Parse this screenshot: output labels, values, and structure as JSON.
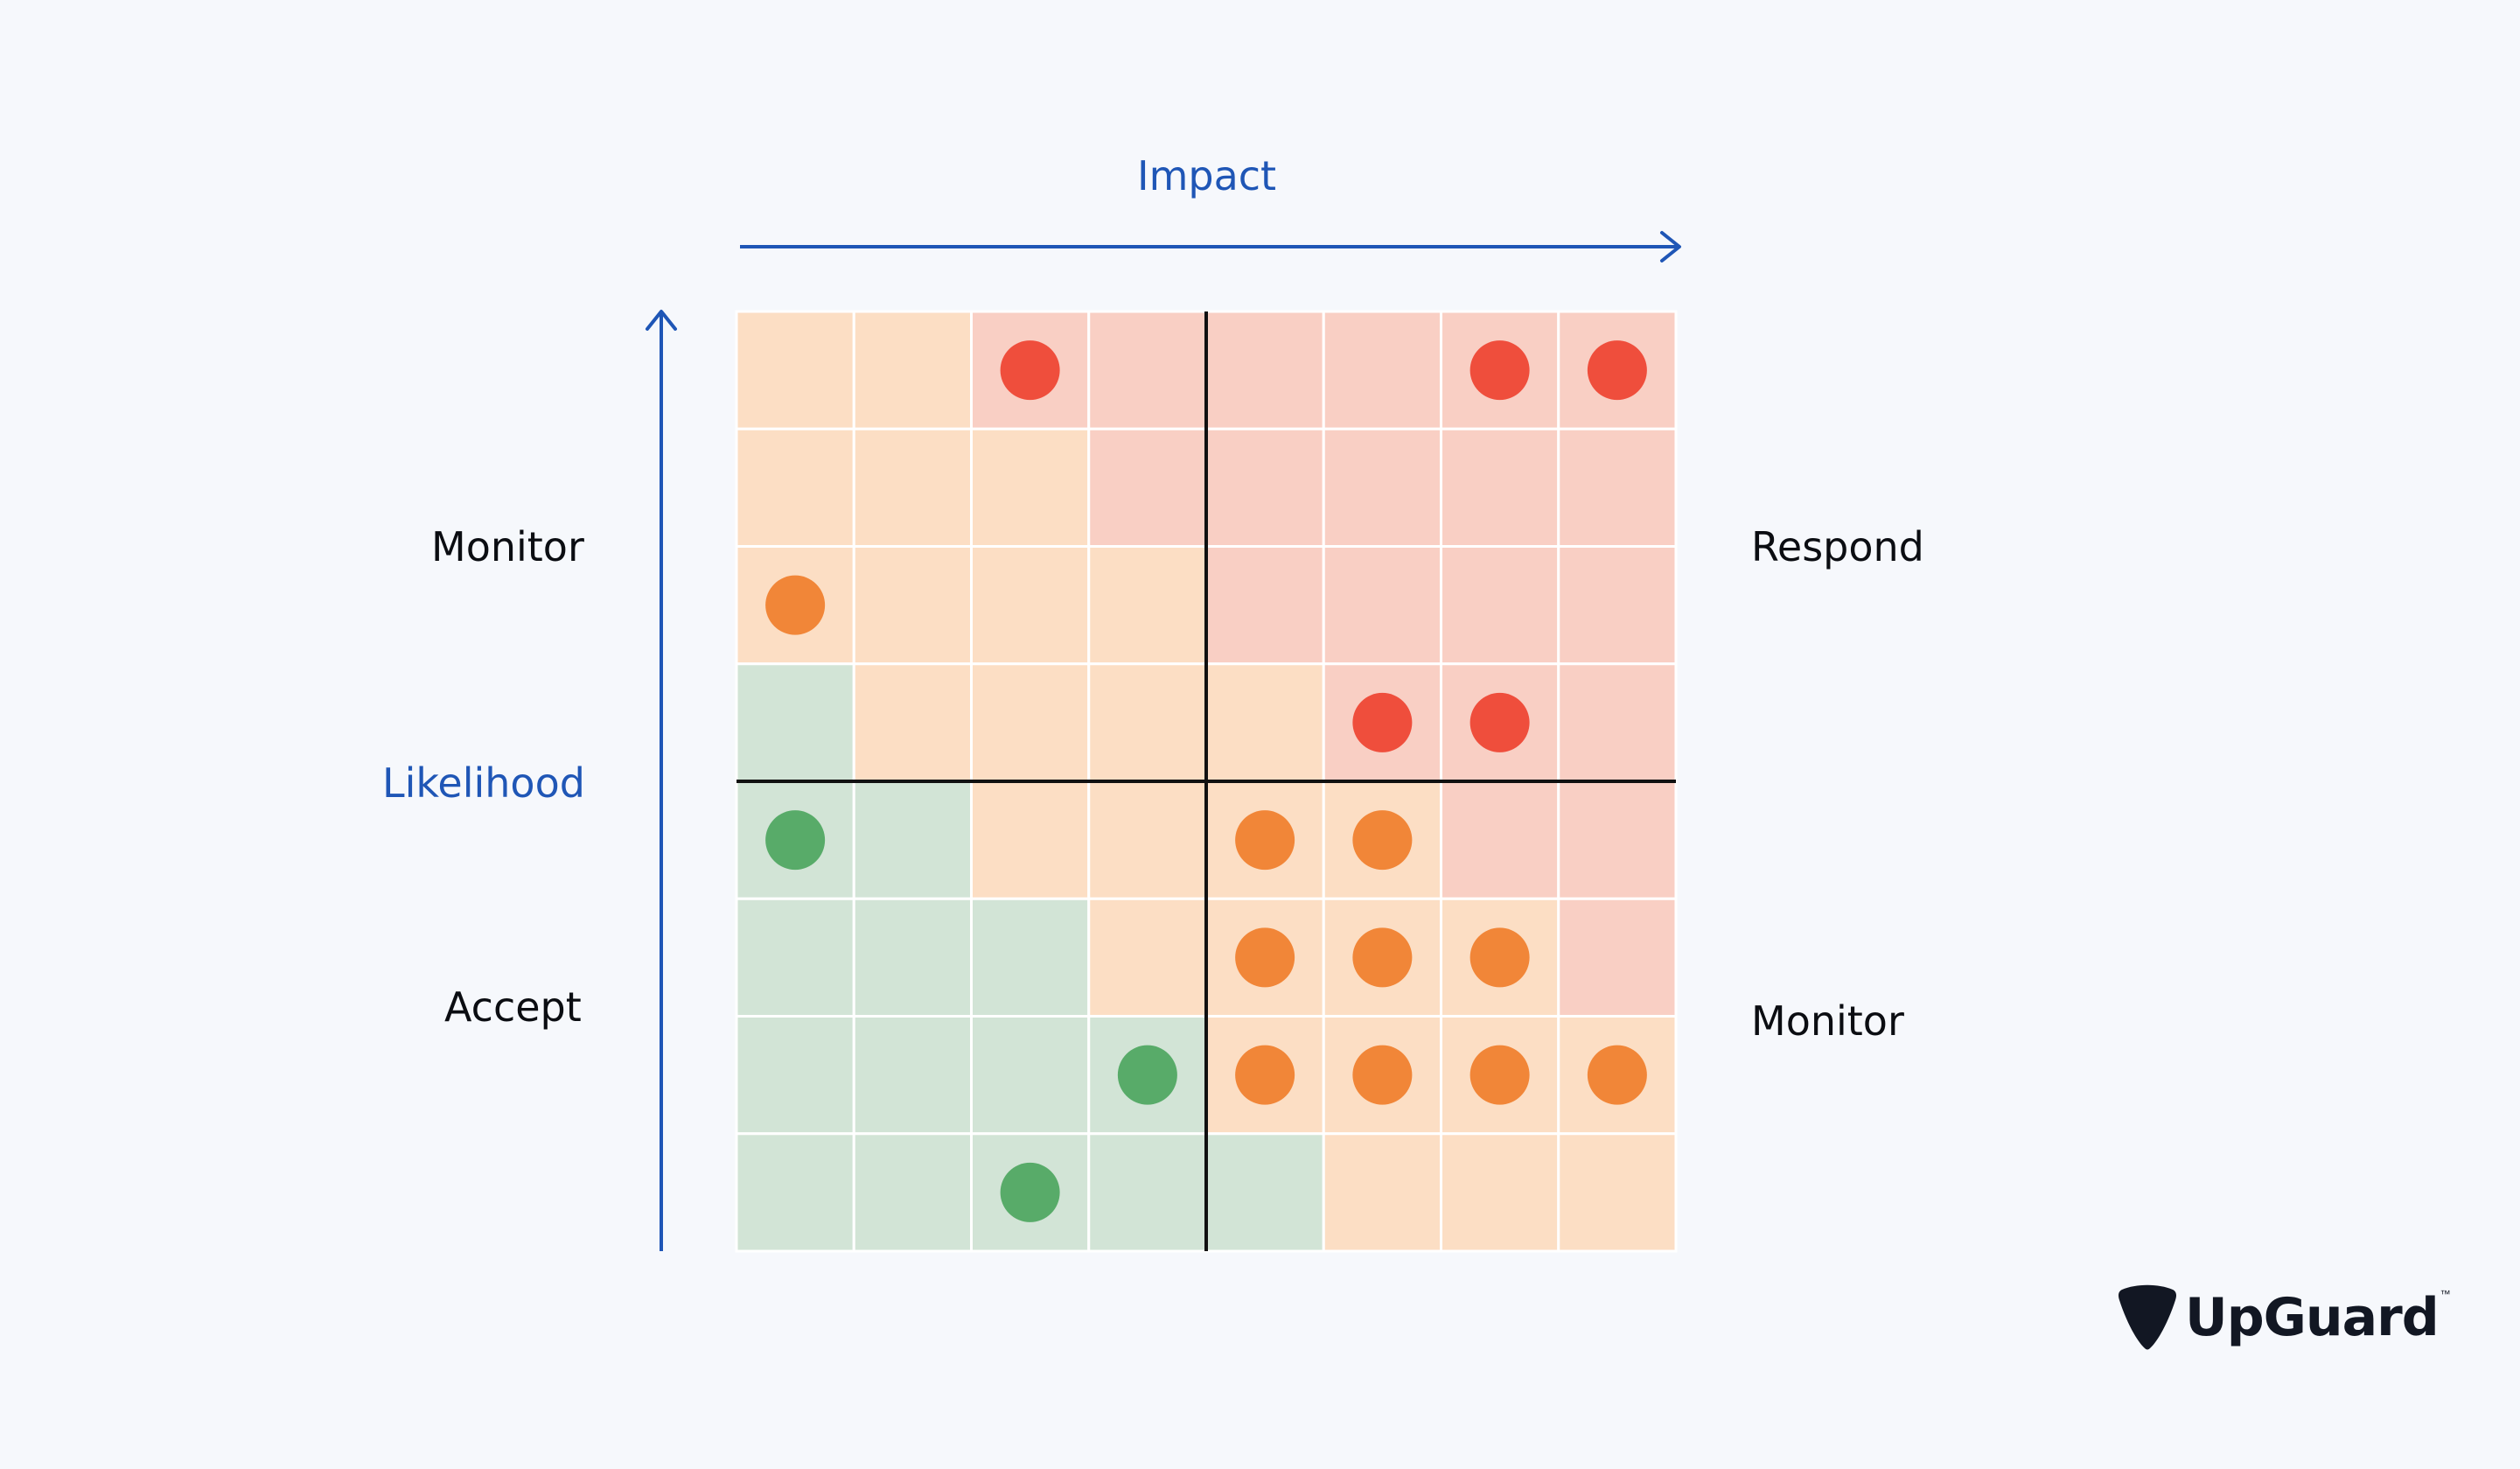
{
  "labels": {
    "impact": "Impact",
    "likelihood": "Likelihood",
    "monitor_top_left": "Monitor",
    "accept": "Accept",
    "respond": "Respond",
    "monitor_bottom_right": "Monitor"
  },
  "brand": {
    "name": "UpGuard",
    "tm": "™"
  },
  "colors": {
    "axis": "#1f56b6",
    "cell_green": "#d2e4d6",
    "cell_peach": "#fcdec4",
    "cell_pink": "#f9cfc4",
    "dot_green": "#58ab69",
    "dot_orange": "#f18638",
    "dot_red": "#ef4e3c",
    "divider": "#111111",
    "grid_line": "#ffffff"
  },
  "grid": {
    "cells": [
      [
        "O",
        "O",
        "P",
        "P",
        "P",
        "P",
        "P",
        "P"
      ],
      [
        "O",
        "O",
        "O",
        "P",
        "P",
        "P",
        "P",
        "P"
      ],
      [
        "O",
        "O",
        "O",
        "O",
        "P",
        "P",
        "P",
        "P"
      ],
      [
        "G",
        "O",
        "O",
        "O",
        "O",
        "P",
        "P",
        "P"
      ],
      [
        "G",
        "G",
        "O",
        "O",
        "O",
        "O",
        "P",
        "P"
      ],
      [
        "G",
        "G",
        "G",
        "O",
        "O",
        "O",
        "O",
        "P"
      ],
      [
        "G",
        "G",
        "G",
        "G",
        "O",
        "O",
        "O",
        "O"
      ],
      [
        "G",
        "G",
        "G",
        "G",
        "G",
        "O",
        "O",
        "O"
      ]
    ],
    "dots": [
      {
        "row": 0,
        "col": 2,
        "color": "red"
      },
      {
        "row": 0,
        "col": 6,
        "color": "red"
      },
      {
        "row": 0,
        "col": 7,
        "color": "red"
      },
      {
        "row": 2,
        "col": 0,
        "color": "orange"
      },
      {
        "row": 3,
        "col": 5,
        "color": "red"
      },
      {
        "row": 3,
        "col": 6,
        "color": "red"
      },
      {
        "row": 4,
        "col": 0,
        "color": "green"
      },
      {
        "row": 4,
        "col": 4,
        "color": "orange"
      },
      {
        "row": 4,
        "col": 5,
        "color": "orange"
      },
      {
        "row": 5,
        "col": 4,
        "color": "orange"
      },
      {
        "row": 5,
        "col": 5,
        "color": "orange"
      },
      {
        "row": 5,
        "col": 6,
        "color": "orange"
      },
      {
        "row": 6,
        "col": 3,
        "color": "green"
      },
      {
        "row": 6,
        "col": 4,
        "color": "orange"
      },
      {
        "row": 6,
        "col": 5,
        "color": "orange"
      },
      {
        "row": 6,
        "col": 6,
        "color": "orange"
      },
      {
        "row": 6,
        "col": 7,
        "color": "orange"
      },
      {
        "row": 7,
        "col": 2,
        "color": "green"
      }
    ]
  }
}
